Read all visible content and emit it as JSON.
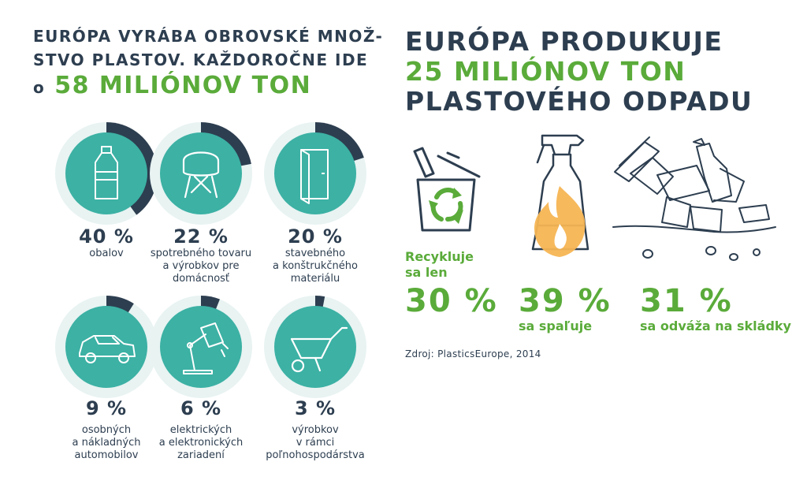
{
  "colors": {
    "navy": "#2d3e50",
    "green": "#5aab3a",
    "teal": "#3cb1a4",
    "ring": "#e8f3f2",
    "flame": "#f5b553"
  },
  "left": {
    "headline_line1": "EURÓPA VYRÁBA OBROVSKÉ MNOŽ-",
    "headline_line2": "STVO PLASTOV. KAŽDOROČNE IDE",
    "headline_prefix": "o",
    "headline_amount": "58 MILIÓNOV TON",
    "categories": [
      {
        "icon": "bottle-icon",
        "percent": "40 %",
        "share": 0.4,
        "label": "obalov"
      },
      {
        "icon": "chair-icon",
        "percent": "22 %",
        "share": 0.22,
        "label": "spotrebného tovaru\na výrobkov pre\ndomácnosť"
      },
      {
        "icon": "door-icon",
        "percent": "20 %",
        "share": 0.2,
        "label": "stavebného\na konštrukčného\nmateriálu"
      },
      {
        "icon": "car-icon",
        "percent": "9 %",
        "share": 0.09,
        "label": "osobných\na nákladných\nautomobilov"
      },
      {
        "icon": "lamp-icon",
        "percent": "6 %",
        "share": 0.06,
        "label": "elektrických\na elektronických\nzariadení"
      },
      {
        "icon": "wheelbarrow-icon",
        "percent": "3 %",
        "share": 0.03,
        "label": "výrobkov\nv rámci\npoľnohospodárstva"
      }
    ]
  },
  "right": {
    "headline_line1": "EURÓPA PRODUKUJE",
    "headline_line2": "25 MILIÓNOV TON",
    "headline_line3": "PLASTOVÉHO ODPADU",
    "recycle_label": "Recykluje\nsa len",
    "recycle_percent": "30 %",
    "burn_percent": "39 %",
    "burn_label": "sa spaľuje",
    "landfill_percent": "31 %",
    "landfill_label": "sa odváža na skládky",
    "source": "Zdroj: PlasticsEurope, 2014"
  }
}
